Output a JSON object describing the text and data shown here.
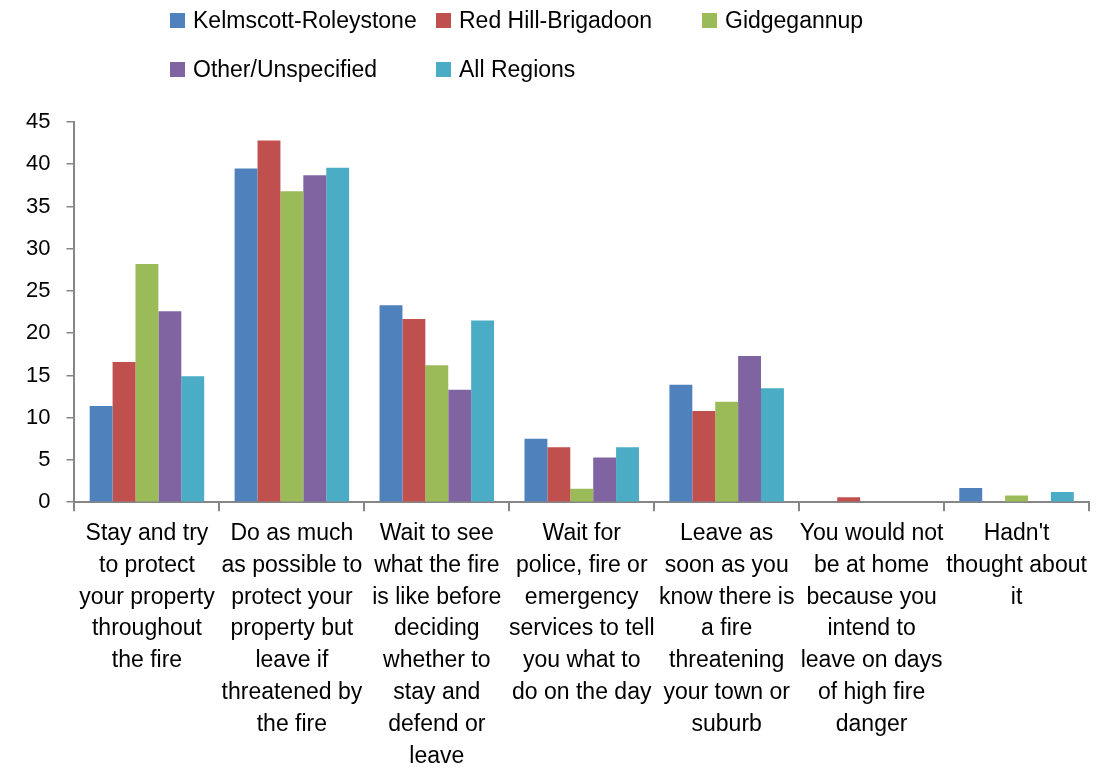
{
  "chart_data": {
    "type": "bar",
    "categories": [
      "Stay and try to protect your property throughout the fire",
      "Do as much as possible to protect your property but leave if threatened by the fire",
      "Wait to see what the fire is like before deciding whether to stay and defend or leave",
      "Wait for police, fire or emergency services to tell you what to do on the day",
      "Leave as soon as you know there is a fire threatening your town or suburb",
      "You would not be at home because you intend to leave on days of high fire danger",
      "Hadn't thought about it"
    ],
    "series": [
      {
        "name": "Kelmscott-Roleystone",
        "color": "#4f81bd",
        "values": [
          11.4,
          39.5,
          23.3,
          7.5,
          13.9,
          0.1,
          1.7
        ]
      },
      {
        "name": "Red Hill-Brigadoon",
        "color": "#c0504d",
        "values": [
          16.6,
          42.8,
          21.7,
          6.5,
          10.8,
          0.6,
          0
        ]
      },
      {
        "name": "Gidgegannup",
        "color": "#9bbb59",
        "values": [
          28.2,
          36.8,
          16.2,
          1.6,
          11.9,
          0,
          0.8
        ]
      },
      {
        "name": "Other/Unspecified",
        "color": "#8064a2",
        "values": [
          22.6,
          38.7,
          13.3,
          5.3,
          17.3,
          0,
          0
        ]
      },
      {
        "name": "All Regions",
        "color": "#4bacc6",
        "values": [
          14.9,
          39.6,
          21.5,
          6.5,
          13.5,
          0.1,
          1.2
        ]
      }
    ],
    "ylim": [
      0,
      45
    ],
    "yticks": [
      0,
      5,
      10,
      15,
      20,
      25,
      30,
      35,
      40,
      45
    ],
    "grid": false,
    "legend": "top"
  }
}
